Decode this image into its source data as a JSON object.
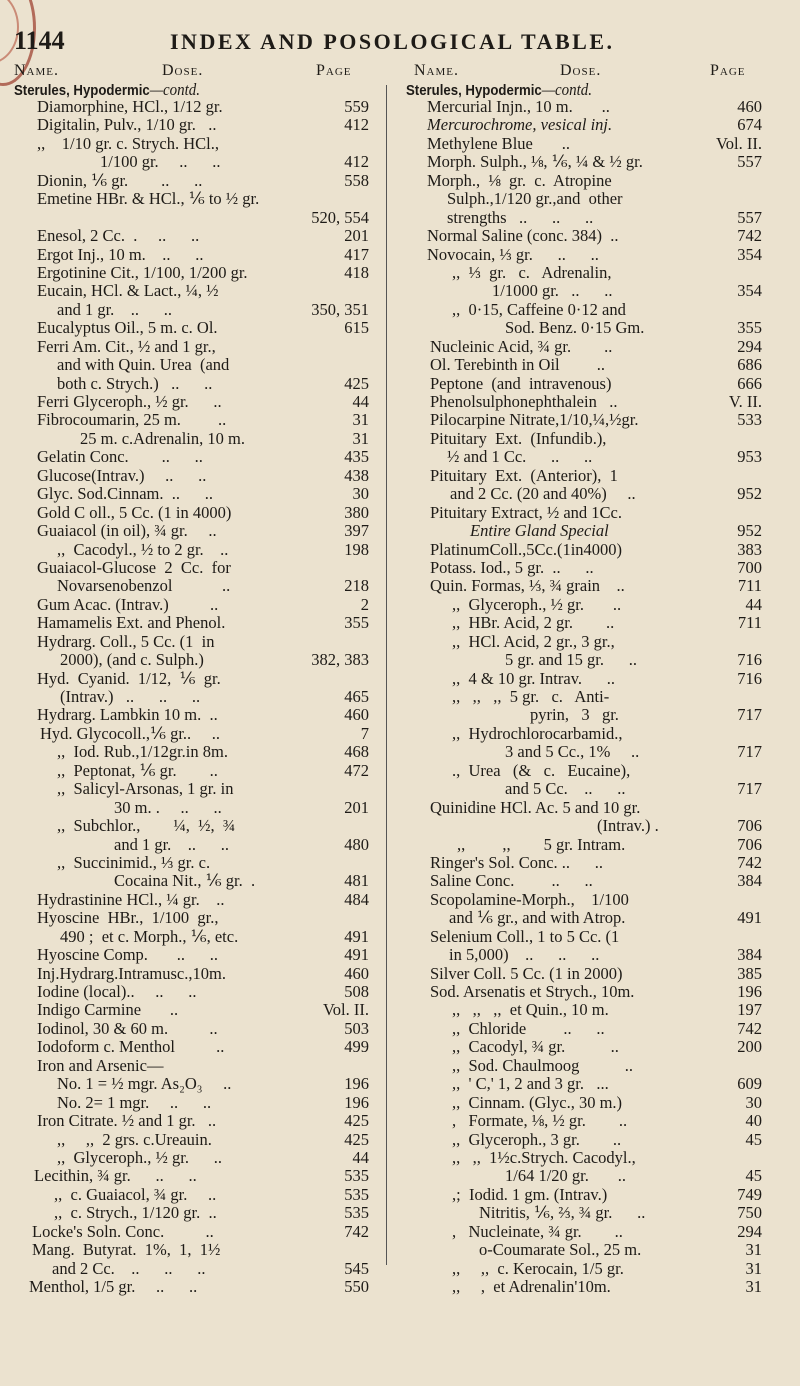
{
  "header": {
    "page_number": "1144",
    "title": "INDEX AND POSOLOGICAL TABLE."
  },
  "columns": [
    {
      "name_label": "Name.",
      "dose_label": "Dose.",
      "page_label": "Page",
      "section": "Sterules, Hypodermic",
      "section_suffix": "—contd.",
      "lines": [
        [
          "Diamorphine, HCl., 1/12 gr.",
          "559"
        ],
        [
          "Digitalin, Pulv., 1/10 gr.   ..",
          "412"
        ],
        [
          ",,    1/10 gr. c. Strych. HCl.,",
          ""
        ],
        [
          "1/100 gr.     ..      ..",
          "412"
        ],
        [
          "Dionin, ⅙ gr.        ..      ..",
          "558"
        ],
        [
          "Emetine HBr. & HCl., ⅙ to ½ gr.",
          ""
        ],
        [
          "",
          "520, 554"
        ],
        [
          "Enesol, 2 Cc.  .     ..      ..",
          "201"
        ],
        [
          "Ergot Inj., 10 m.    ..      ..",
          "417"
        ],
        [
          "Ergotinine Cit., 1/100, 1/200 gr.",
          "418"
        ],
        [
          "Eucain, HCl. & Lact., ¼, ½",
          ""
        ],
        [
          "and 1 gr.    ..      ..",
          "350, 351"
        ],
        [
          "Eucalyptus Oil., 5 m. c. Ol.",
          "615"
        ],
        [
          "Ferri Am. Cit., ½ and 1 gr.,",
          ""
        ],
        [
          "and with Quin. Urea  (and",
          ""
        ],
        [
          "both c. Strych.)   ..      ..",
          "425"
        ],
        [
          "Ferri Glyceroph., ½ gr.      ..",
          "44"
        ],
        [
          "Fibrocoumarin, 25 m.         ..",
          "31"
        ],
        [
          "25 m. c.Adrenalin, 10 m.",
          "31"
        ],
        [
          "Gelatin Conc.        ..      ..",
          "435"
        ],
        [
          "Glucose(Intrav.)     ..      ..",
          "438"
        ],
        [
          "Glyc. Sod.Cinnam.  ..      ..",
          "30"
        ],
        [
          "Gold C oll., 5 Cc. (1 in 4000)",
          "380"
        ],
        [
          "Guaiacol (in oil), ¾ gr.     ..",
          "397"
        ],
        [
          ",,  Cacodyl., ½ to 2 gr.    ..",
          "198"
        ],
        [
          "Guaiacol-Glucose  2  Cc.  for",
          ""
        ],
        [
          "Novarsenobenzol            ..",
          "218"
        ],
        [
          "Gum Acac. (Intrav.)          ..",
          "2"
        ],
        [
          "Hamamelis Ext. and Phenol.",
          "355"
        ],
        [
          "Hydrarg. Coll., 5 Cc. (1  in",
          ""
        ],
        [
          "2000), (and c. Sulph.)",
          "382, 383"
        ],
        [
          "Hyd.  Cyanid.  1/12,  ⅙  gr.",
          ""
        ],
        [
          "(Intrav.)   ..      ..      ..",
          "465"
        ],
        [
          "Hydrarg. Lambkin 10 m.  ..",
          "460"
        ],
        [
          "Hyd. Glycocoll.,⅙ gr..     ..",
          "7"
        ],
        [
          ",,  Iod. Rub.,1/12gr.in 8m.",
          "468"
        ],
        [
          ",,  Peptonat, ⅙ gr.        ..",
          "472"
        ],
        [
          ",,  Salicyl-Arsonas, 1 gr. in",
          ""
        ],
        [
          "30 m. .     ..      ..",
          "201"
        ],
        [
          ",,  Subchlor.,        ¼,  ½,  ¾",
          ""
        ],
        [
          "and 1 gr.    ..      ..",
          "480"
        ],
        [
          ",,  Succinimid., ⅓ gr. c.",
          ""
        ],
        [
          "Cocaina Nit., ⅙ gr.  .",
          "481"
        ],
        [
          "Hydrastinine HCl., ¼ gr.    ..",
          "484"
        ],
        [
          "Hyoscine  HBr.,  1/100  gr.,",
          ""
        ],
        [
          "490 ;  et c. Morph., ⅙, etc.",
          "491"
        ],
        [
          "Hyoscine Comp.       ..      ..",
          "491"
        ],
        [
          "Inj.Hydrarg.Intramusc.,10m.",
          "460"
        ],
        [
          "Iodine (local)..     ..      ..",
          "508"
        ],
        [
          "Indigo Carmine       ..",
          "Vol. II."
        ],
        [
          "Iodinol, 30 & 60 m.          ..",
          "503"
        ],
        [
          "Iodoform c. Menthol          ..",
          "499"
        ],
        [
          "Iron and Arsenic—",
          ""
        ],
        [
          "No. 1 = ½ mgr. As₂O₃     ..",
          "196"
        ],
        [
          "No. 2= 1 mgr.     ..      ..",
          "196"
        ],
        [
          "Iron Citrate. ½ and 1 gr.   ..",
          "425"
        ],
        [
          ",,     ,,  2 grs. c.Ureauin.",
          "425"
        ],
        [
          ",,  Glyceroph., ½ gr.      ..",
          "44"
        ],
        [
          "Lecithin, ¾ gr.      ..      ..",
          "535"
        ],
        [
          ",,  c. Guaiacol, ¾ gr.     ..",
          "535"
        ],
        [
          ",,  c. Strych., 1/120 gr.  ..",
          "535"
        ],
        [
          "Locke's Soln. Conc.          ..",
          "742"
        ],
        [
          "Mang.  Butyrat.  1%,  1,  1½",
          ""
        ],
        [
          "and 2 Cc.    ..      ..      ..",
          "545"
        ],
        [
          "Menthol, 1/5 gr.     ..      ..",
          "550"
        ]
      ]
    },
    {
      "name_label": "Name.",
      "dose_label": "Dose.",
      "page_label": "Page",
      "section": "Sterules, Hypodermic",
      "section_suffix": "—contd.",
      "lines": [
        [
          "Mercurial Injn., 10 m.       ..",
          "460"
        ],
        [
          "Mercurochrome, vesical inj.",
          "674"
        ],
        [
          "Methylene Blue       ..",
          "Vol. II."
        ],
        [
          "Morph. Sulph., ⅛, ⅙, ¼ & ½ gr.",
          "557"
        ],
        [
          "Morph.,  ⅛  gr.  c.  Atropine",
          ""
        ],
        [
          "Sulph.,1/120 gr.,and  other",
          ""
        ],
        [
          "strengths   ..      ..      ..",
          "557"
        ],
        [
          "Normal Saline (conc. 384)  ..",
          "742"
        ],
        [
          "Novocain, ⅓ gr.      ..      ..",
          "354"
        ],
        [
          ",,  ⅓  gr.   c.   Adrenalin,",
          ""
        ],
        [
          "1/1000 gr.   ..      ..",
          "354"
        ],
        [
          ",,  0·15, Caffeine 0·12 and",
          ""
        ],
        [
          "Sod. Benz. 0·15 Gm.",
          "355"
        ],
        [
          "Nucleinic Acid, ¾ gr.        ..",
          "294"
        ],
        [
          "Ol. Terebinth in Oil         ..",
          "686"
        ],
        [
          "Peptone  (and  intravenous)",
          "666"
        ],
        [
          "Phenolsulphonephthalein   ..",
          "V. II."
        ],
        [
          "Pilocarpine Nitrate,1/10,¼,½gr.",
          "533"
        ],
        [
          "Pituitary  Ext.  (Infundib.),",
          ""
        ],
        [
          "½ and 1 Cc.      ..      ..",
          "953"
        ],
        [
          "Pituitary  Ext.  (Anterior),  1",
          ""
        ],
        [
          "and 2 Cc. (20 and 40%)     ..",
          "952"
        ],
        [
          "Pituitary Extract, ½ and 1Cc.",
          ""
        ],
        [
          "Entire Gland Special",
          "952"
        ],
        [
          "PlatinumColl.,5Cc.(1in4000)",
          "383"
        ],
        [
          "Potass. Iod., 5 gr.  ..      ..",
          "700"
        ],
        [
          "Quin. Formas, ⅓, ¾ grain    ..",
          "711"
        ],
        [
          ",,  Glyceroph., ½ gr.       ..",
          "44"
        ],
        [
          ",,  HBr. Acid, 2 gr.        ..",
          "711"
        ],
        [
          ",,  HCl. Acid, 2 gr., 3 gr.,",
          ""
        ],
        [
          "5 gr. and 15 gr.      ..",
          "716"
        ],
        [
          ",,  4 & 10 gr. Intrav.      ..",
          "716"
        ],
        [
          ",,   ,,   ,,  5 gr.   c.   Anti-",
          ""
        ],
        [
          "pyrin,   3   gr.",
          "717"
        ],
        [
          ",,  Hydrochlorocarbamid.,",
          ""
        ],
        [
          "3 and 5 Cc., 1%     ..",
          "717"
        ],
        [
          ".,  Urea   (&   c.   Eucaine),",
          ""
        ],
        [
          "and 5 Cc.    ..      ..",
          "717"
        ],
        [
          "Quinidine HCl. Ac. 5 and 10 gr.",
          ""
        ],
        [
          "(Intrav.) .",
          "706"
        ],
        [
          ",,         ,,        5 gr. Intram.",
          "706"
        ],
        [
          "Ringer's Sol. Conc. ..      ..",
          "742"
        ],
        [
          "Saline Conc.         ..      ..",
          "384"
        ],
        [
          "Scopolamine-Morph.,    1/100",
          ""
        ],
        [
          "and ⅙ gr., and with Atrop.",
          "491"
        ],
        [
          "Selenium Coll., 1 to 5 Cc. (1",
          ""
        ],
        [
          "in 5,000)    ..      ..      ..",
          "384"
        ],
        [
          "Silver Coll. 5 Cc. (1 in 2000)",
          "385"
        ],
        [
          "Sod. Arsenatis et Strych., 10m.",
          "196"
        ],
        [
          ",,   ,,   ,,  et Quin., 10 m.",
          "197"
        ],
        [
          ",,  Chloride         ..      ..",
          "742"
        ],
        [
          ",,  Cacodyl, ¾ gr.           ..",
          "200"
        ],
        [
          ",,  Sod. Chaulmoog           ..",
          ""
        ],
        [
          ",,  ' C,' 1, 2 and 3 gr.   ...",
          "609"
        ],
        [
          ",,  Cinnam. (Glyc., 30 m.)",
          "30"
        ],
        [
          ",   Formate, ⅛, ½ gr.        ..",
          "40"
        ],
        [
          ",,  Glyceroph., 3 gr.        ..",
          "45"
        ],
        [
          ",,   ,,  1½c.Strych. Cacodyl.,",
          ""
        ],
        [
          "1/64 1/20 gr.       ..",
          "45"
        ],
        [
          ",;  Iodid. 1 gm. (Intrav.)",
          "749"
        ],
        [
          "Nitritis, ⅙, ⅔, ¾ gr.      ..",
          "750"
        ],
        [
          ",   Nucleinate, ¾ gr.        ..",
          "294"
        ],
        [
          "o-Coumarate Sol., 25 m.",
          "31"
        ],
        [
          ",,     ,,  c. Kerocain, 1/5 gr.",
          "31"
        ],
        [
          ",,     ,  et Adrenalin'10m.",
          "31"
        ]
      ]
    }
  ]
}
